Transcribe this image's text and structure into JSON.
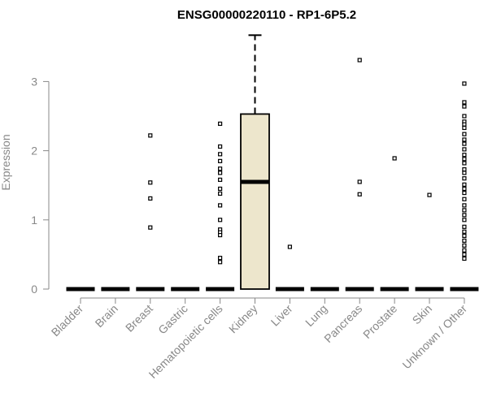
{
  "chart_data": {
    "type": "box",
    "title": "ENSG00000220110 - RP1-6P5.2",
    "xlabel": "",
    "ylabel": "Expression",
    "ylim": [
      0,
      3.7
    ],
    "yticks": [
      0,
      1,
      2,
      3
    ],
    "grid": false,
    "box_fill_color": "#ede6cc",
    "axis_color": "#888888",
    "categories": [
      "Bladder",
      "Brain",
      "Breast",
      "Gastric",
      "Hematopoietic cells",
      "Kidney",
      "Liver",
      "Lung",
      "Pancreas",
      "Prostate",
      "Skin",
      "Unknown / Other"
    ],
    "boxes": [
      {
        "category": "Bladder",
        "min": 0,
        "q1": 0,
        "median": 0,
        "q3": 0,
        "max": 0,
        "outliers": []
      },
      {
        "category": "Brain",
        "min": 0,
        "q1": 0,
        "median": 0,
        "q3": 0,
        "max": 0,
        "outliers": []
      },
      {
        "category": "Breast",
        "min": 0,
        "q1": 0,
        "median": 0,
        "q3": 0,
        "max": 0,
        "outliers": [
          2.22,
          1.54,
          1.31,
          0.89
        ]
      },
      {
        "category": "Gastric",
        "min": 0,
        "q1": 0,
        "median": 0,
        "q3": 0,
        "max": 0,
        "outliers": []
      },
      {
        "category": "Hematopoietic cells",
        "min": 0,
        "q1": 0,
        "median": 0,
        "q3": 0,
        "max": 0,
        "outliers": [
          2.39,
          2.06,
          1.95,
          1.85,
          1.74,
          1.68,
          1.58,
          1.45,
          1.38,
          1.21,
          1.0,
          0.86,
          0.82,
          0.78,
          0.45,
          0.39
        ]
      },
      {
        "category": "Kidney",
        "min": 0,
        "q1": 0,
        "median": 1.55,
        "q3": 2.53,
        "max": 3.67,
        "outliers": []
      },
      {
        "category": "Liver",
        "min": 0,
        "q1": 0,
        "median": 0,
        "q3": 0,
        "max": 0,
        "outliers": [
          0.61
        ]
      },
      {
        "category": "Lung",
        "min": 0,
        "q1": 0,
        "median": 0,
        "q3": 0,
        "max": 0,
        "outliers": []
      },
      {
        "category": "Pancreas",
        "min": 0,
        "q1": 0,
        "median": 0,
        "q3": 0,
        "max": 0,
        "outliers": [
          3.31,
          1.55,
          1.37
        ]
      },
      {
        "category": "Prostate",
        "min": 0,
        "q1": 0,
        "median": 0,
        "q3": 0,
        "max": 0,
        "outliers": [
          1.89
        ]
      },
      {
        "category": "Skin",
        "min": 0,
        "q1": 0,
        "median": 0,
        "q3": 0,
        "max": 0,
        "outliers": [
          1.36
        ]
      },
      {
        "category": "Unknown / Other",
        "min": 0,
        "q1": 0,
        "median": 0,
        "q3": 0,
        "max": 0,
        "outliers": [
          2.97,
          2.7,
          2.64,
          2.5,
          2.42,
          2.38,
          2.33,
          2.24,
          2.16,
          2.1,
          2.02,
          1.94,
          1.88,
          1.82,
          1.73,
          1.68,
          1.6,
          1.51,
          1.45,
          1.39,
          1.3,
          1.21,
          1.14,
          1.07,
          1.0,
          0.9,
          0.83,
          0.77,
          0.7,
          0.63,
          0.56,
          0.5,
          0.44
        ]
      }
    ]
  }
}
